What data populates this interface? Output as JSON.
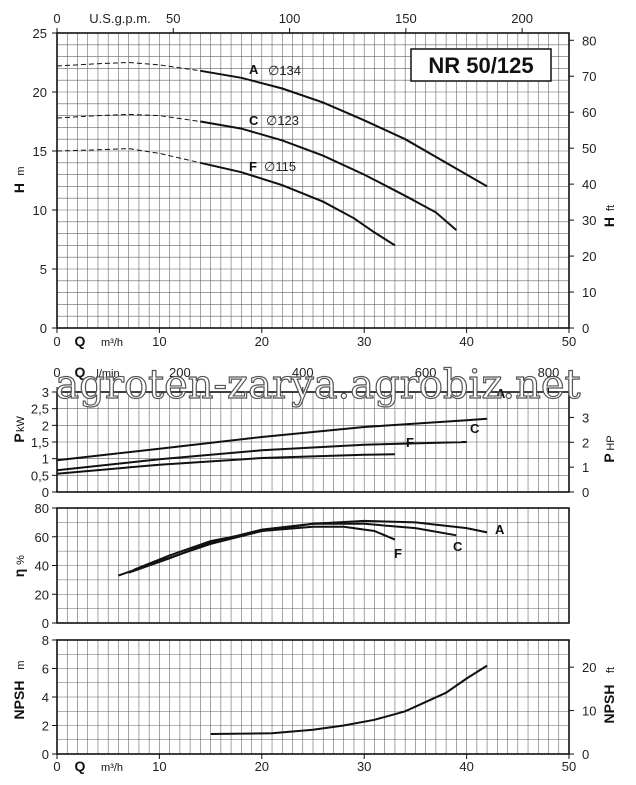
{
  "model": "NR 50/125",
  "watermark": "agroten-zarya.agrobiz.net",
  "axes": {
    "q_m3h_label": "Q",
    "q_m3h_unit": "m³/h",
    "q_gpm_label": "U.S.g.p.m.",
    "q_lmin_label": "Q",
    "q_lmin_unit": "l/min",
    "h_m_label": "H",
    "h_m_unit": "m",
    "h_ft_label": "H",
    "h_ft_unit": "ft",
    "p_kw_label": "P",
    "p_kw_unit": "kW",
    "p_hp_label": "P",
    "p_hp_unit": "HP",
    "eta_label": "η",
    "eta_unit": "%",
    "npsh_m_label": "NPSH",
    "npsh_m_unit": "m",
    "npsh_ft_label": "NPSH",
    "npsh_ft_unit": "ft"
  },
  "chart_data": [
    {
      "type": "line",
      "id": "head",
      "xlim": [
        0,
        50
      ],
      "ylim": [
        0,
        25
      ],
      "x_ticks": [
        0,
        10,
        20,
        30,
        40,
        50
      ],
      "y_ticks": [
        0,
        5,
        10,
        15,
        20,
        25
      ],
      "top_ticks": [
        "0",
        "50",
        "100",
        "150",
        "200"
      ],
      "top_tick_gpm": [
        0,
        50,
        100,
        150,
        200
      ],
      "right_ticks": [
        "0",
        "10",
        "20",
        "30",
        "40",
        "50",
        "60",
        "70",
        "80"
      ],
      "right_tick_ft": [
        0,
        10,
        20,
        30,
        40,
        50,
        60,
        70,
        80
      ],
      "series": [
        {
          "name": "A Ø134",
          "label": "A",
          "dia": "∅134",
          "dashed": [
            [
              0,
              22.2
            ],
            [
              4,
              22.4
            ],
            [
              7,
              22.5
            ],
            [
              10,
              22.3
            ],
            [
              14,
              21.8
            ]
          ],
          "solid": [
            [
              14,
              21.8
            ],
            [
              18,
              21.2
            ],
            [
              22,
              20.3
            ],
            [
              26,
              19.1
            ],
            [
              30,
              17.6
            ],
            [
              34,
              16.0
            ],
            [
              38,
              14.0
            ],
            [
              42,
              12.0
            ]
          ]
        },
        {
          "name": "C Ø123",
          "label": "C",
          "dia": "∅123",
          "dashed": [
            [
              0,
              17.8
            ],
            [
              4,
              18.0
            ],
            [
              7,
              18.1
            ],
            [
              10,
              18.0
            ],
            [
              14,
              17.5
            ]
          ],
          "solid": [
            [
              14,
              17.5
            ],
            [
              18,
              16.9
            ],
            [
              22,
              15.9
            ],
            [
              26,
              14.6
            ],
            [
              30,
              13.0
            ],
            [
              34,
              11.2
            ],
            [
              37,
              9.8
            ],
            [
              39,
              8.3
            ]
          ]
        },
        {
          "name": "F Ø115",
          "label": "F",
          "dia": "∅115",
          "dashed": [
            [
              0,
              15.0
            ],
            [
              4,
              15.1
            ],
            [
              7,
              15.2
            ],
            [
              10,
              14.8
            ],
            [
              14,
              14.0
            ]
          ],
          "solid": [
            [
              14,
              14.0
            ],
            [
              18,
              13.2
            ],
            [
              22,
              12.1
            ],
            [
              26,
              10.7
            ],
            [
              29,
              9.3
            ],
            [
              31,
              8.1
            ],
            [
              33,
              7.0
            ]
          ]
        }
      ]
    },
    {
      "type": "line",
      "id": "power",
      "xlim": [
        0,
        50
      ],
      "ylim": [
        0,
        3
      ],
      "y_ticks": [
        "0",
        "0,5",
        "1",
        "1,5",
        "2",
        "2,5",
        "3"
      ],
      "y_tick_vals": [
        0,
        0.5,
        1,
        1.5,
        2,
        2.5,
        3
      ],
      "top_ticks": [
        "0",
        "200",
        "400",
        "600",
        "800"
      ],
      "top_tick_lmin": [
        0,
        200,
        400,
        600,
        800
      ],
      "right_ticks": [
        "0",
        "1",
        "2",
        "3"
      ],
      "right_tick_hp": [
        0,
        1,
        2,
        3
      ],
      "series": [
        {
          "name": "A",
          "label": "A",
          "points": [
            [
              0,
              0.95
            ],
            [
              10,
              1.3
            ],
            [
              20,
              1.65
            ],
            [
              30,
              1.95
            ],
            [
              40,
              2.15
            ],
            [
              42,
              2.2
            ]
          ]
        },
        {
          "name": "C",
          "label": "C",
          "points": [
            [
              0,
              0.65
            ],
            [
              10,
              0.98
            ],
            [
              20,
              1.25
            ],
            [
              30,
              1.42
            ],
            [
              40,
              1.5
            ],
            [
              39.5,
              1.5
            ]
          ]
        },
        {
          "name": "F",
          "label": "F",
          "points": [
            [
              0,
              0.55
            ],
            [
              10,
              0.82
            ],
            [
              20,
              1.02
            ],
            [
              30,
              1.12
            ],
            [
              33,
              1.13
            ]
          ]
        }
      ]
    },
    {
      "type": "line",
      "id": "efficiency",
      "xlim": [
        0,
        50
      ],
      "ylim": [
        0,
        80
      ],
      "y_ticks": [
        0,
        20,
        40,
        60,
        80
      ],
      "series": [
        {
          "name": "A",
          "label": "A",
          "points": [
            [
              6,
              33
            ],
            [
              10,
              43
            ],
            [
              15,
              55
            ],
            [
              20,
              64
            ],
            [
              25,
              69
            ],
            [
              30,
              71
            ],
            [
              35,
              70
            ],
            [
              40,
              66
            ],
            [
              42,
              63
            ]
          ]
        },
        {
          "name": "C",
          "label": "C",
          "points": [
            [
              7,
              35
            ],
            [
              11,
              45
            ],
            [
              15,
              56
            ],
            [
              20,
              65
            ],
            [
              25,
              69
            ],
            [
              30,
              69
            ],
            [
              35,
              66
            ],
            [
              39,
              61
            ]
          ]
        },
        {
          "name": "F",
          "label": "F",
          "points": [
            [
              7.5,
              37
            ],
            [
              11,
              47
            ],
            [
              15,
              57
            ],
            [
              20,
              64
            ],
            [
              25,
              67
            ],
            [
              28,
              67
            ],
            [
              31,
              64
            ],
            [
              33,
              58
            ]
          ]
        }
      ]
    },
    {
      "type": "line",
      "id": "npsh",
      "xlim": [
        0,
        50
      ],
      "ylim": [
        0,
        8
      ],
      "x_ticks": [
        0,
        10,
        20,
        30,
        40,
        50
      ],
      "y_ticks": [
        0,
        2,
        4,
        6,
        8
      ],
      "right_ticks": [
        "0",
        "10",
        "20"
      ],
      "right_tick_ft": [
        0,
        10,
        20
      ],
      "series": [
        {
          "name": "NPSH",
          "points": [
            [
              15,
              1.4
            ],
            [
              21,
              1.45
            ],
            [
              25,
              1.7
            ],
            [
              28,
              2.0
            ],
            [
              31,
              2.4
            ],
            [
              34,
              3.0
            ],
            [
              38,
              4.3
            ],
            [
              40,
              5.3
            ],
            [
              42,
              6.2
            ]
          ]
        }
      ]
    }
  ],
  "colors": {
    "grid": "#666666",
    "frame": "#111111",
    "curve": "#111111",
    "model_box": "#111111"
  }
}
